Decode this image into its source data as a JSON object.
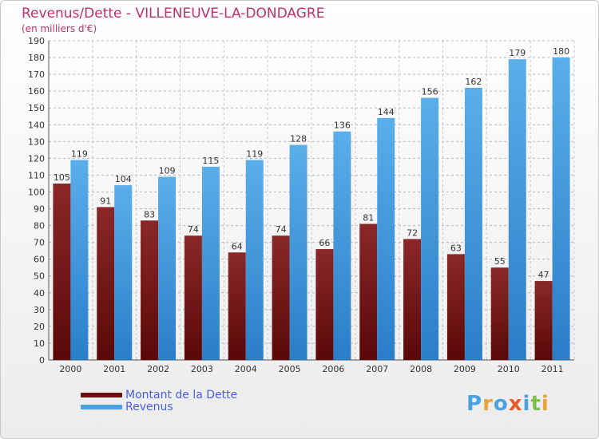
{
  "title": "Revenus/Dette - VILLENEUVE-LA-DONDAGRE",
  "subtitle": "(en milliers d'€)",
  "logo": {
    "letters": [
      "P",
      "r",
      "o",
      "x",
      "i",
      "t",
      "i"
    ],
    "colors": [
      "#4aa3df",
      "#e8a53a",
      "#4aa3df",
      "#e85a2a",
      "#4aa3df",
      "#7cc04a",
      "#e8a53a"
    ]
  },
  "chart_data": {
    "type": "bar",
    "categories": [
      "2000",
      "2001",
      "2002",
      "2003",
      "2004",
      "2005",
      "2006",
      "2007",
      "2008",
      "2009",
      "2010",
      "2011"
    ],
    "series": [
      {
        "name": "Montant de la Dette",
        "values": [
          105,
          91,
          83,
          74,
          64,
          74,
          66,
          81,
          72,
          63,
          55,
          47
        ],
        "color": "#7a1c1c"
      },
      {
        "name": "Revenus",
        "values": [
          119,
          104,
          109,
          115,
          119,
          128,
          136,
          144,
          156,
          162,
          179,
          180
        ],
        "color": "#4aa3e6"
      }
    ],
    "ylim": [
      0,
      190
    ],
    "yticks": [
      0,
      10,
      20,
      30,
      40,
      50,
      60,
      70,
      80,
      90,
      100,
      110,
      120,
      130,
      140,
      150,
      160,
      170,
      180,
      190
    ],
    "grid": true,
    "legend_placement": "bottom-left"
  }
}
